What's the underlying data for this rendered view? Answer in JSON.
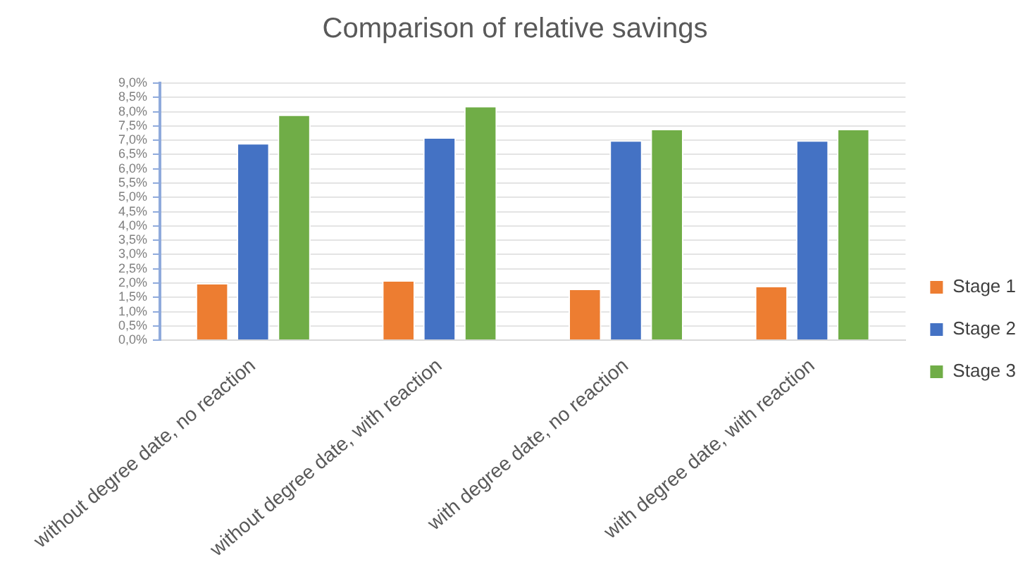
{
  "chart_data": {
    "type": "bar",
    "title": "Comparison of relative savings",
    "categories": [
      "without degree date, no reaction",
      "without degree date, with reaction",
      "with degree date, no reaction",
      "with degree date, with reaction"
    ],
    "series": [
      {
        "name": "Stage 1",
        "color": "#ed7d31",
        "values": [
          2.0,
          2.1,
          1.8,
          1.9
        ]
      },
      {
        "name": "Stage 2",
        "color": "#4472c4",
        "values": [
          6.9,
          7.1,
          7.0,
          7.0
        ]
      },
      {
        "name": "Stage 3",
        "color": "#70ad47",
        "values": [
          7.9,
          8.2,
          7.4,
          7.4
        ]
      }
    ],
    "ylim": [
      0,
      9
    ],
    "yticks": [
      {
        "value": 0,
        "label": "0,0%"
      },
      {
        "value": 0.5,
        "label": "0,5%"
      },
      {
        "value": 1,
        "label": "1,0%"
      },
      {
        "value": 1.5,
        "label": "1,5%"
      },
      {
        "value": 2,
        "label": "2,0%"
      },
      {
        "value": 2.5,
        "label": "2,5%"
      },
      {
        "value": 3,
        "label": "3,0%"
      },
      {
        "value": 3.5,
        "label": "3,5%"
      },
      {
        "value": 4,
        "label": "4,0%"
      },
      {
        "value": 4.5,
        "label": "4,5%"
      },
      {
        "value": 5,
        "label": "5,0%"
      },
      {
        "value": 5.5,
        "label": "5,5%"
      },
      {
        "value": 6,
        "label": "6,0%"
      },
      {
        "value": 6.5,
        "label": "6,5%"
      },
      {
        "value": 7,
        "label": "7,0%"
      },
      {
        "value": 7.5,
        "label": "7,5%"
      },
      {
        "value": 8,
        "label": "8,0%"
      },
      {
        "value": 8.5,
        "label": "8,5%"
      },
      {
        "value": 9,
        "label": "9,0%"
      }
    ],
    "grid": "y",
    "legend": "right"
  }
}
